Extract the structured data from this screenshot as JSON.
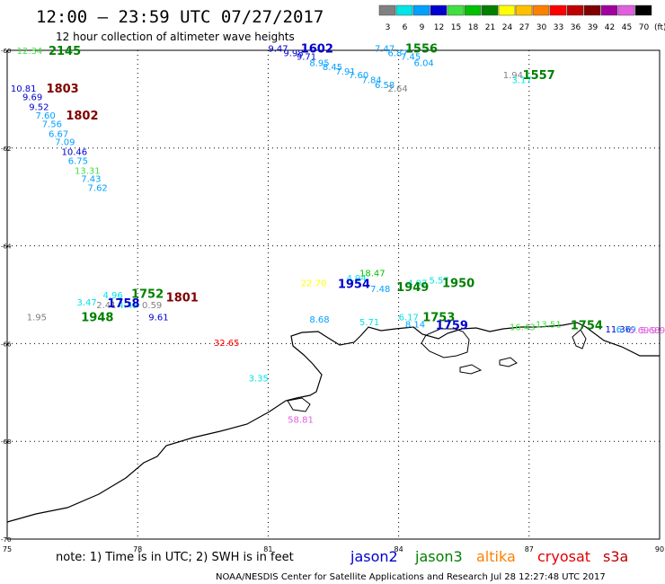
{
  "header": {
    "title": "12:00 – 23:59 UTC 07/27/2017",
    "subtitle": "12 hour collection of altimeter wave heights"
  },
  "legend": {
    "unit": "(ft)",
    "bins": [
      {
        "label": "3",
        "color": "#808080"
      },
      {
        "label": "6",
        "color": "#00e5e5"
      },
      {
        "label": "9",
        "color": "#00a0ff"
      },
      {
        "label": "12",
        "color": "#0000d0"
      },
      {
        "label": "15",
        "color": "#40e040"
      },
      {
        "label": "18",
        "color": "#00c000"
      },
      {
        "label": "21",
        "color": "#008000"
      },
      {
        "label": "24",
        "color": "#ffff00"
      },
      {
        "label": "27",
        "color": "#ffc000"
      },
      {
        "label": "30",
        "color": "#ff8000"
      },
      {
        "label": "33",
        "color": "#ff0000"
      },
      {
        "label": "36",
        "color": "#c00000"
      },
      {
        "label": "39",
        "color": "#800000"
      },
      {
        "label": "42",
        "color": "#a000a0"
      },
      {
        "label": "45",
        "color": "#e060e0"
      },
      {
        "label": "70",
        "color": "#000000"
      }
    ]
  },
  "map": {
    "lon_range": [
      75,
      90
    ],
    "lat_range": [
      -60,
      -70
    ],
    "lon_ticks": [
      "75",
      "78",
      "81",
      "84",
      "87",
      "90"
    ],
    "lat_ticks": [
      "-60",
      "-62",
      "-64",
      "-66",
      "-68",
      "-70"
    ],
    "grid": "dotted"
  },
  "observations": [
    {
      "v": "12.34",
      "color": "#40e040",
      "lon": 75.22,
      "lat": -60.0
    },
    {
      "v": "9.47",
      "color": "#0000d0",
      "lon": 81.0,
      "lat": -59.95
    },
    {
      "v": "9.98",
      "color": "#0000d0",
      "lon": 81.35,
      "lat": -60.05
    },
    {
      "v": "9.71",
      "color": "#0000d0",
      "lon": 81.65,
      "lat": -60.12
    },
    {
      "v": "8.95",
      "color": "#00a0ff",
      "lon": 81.95,
      "lat": -60.25
    },
    {
      "v": "8.45",
      "color": "#00a0ff",
      "lon": 82.25,
      "lat": -60.33
    },
    {
      "v": "7.91",
      "color": "#00a0ff",
      "lon": 82.55,
      "lat": -60.42
    },
    {
      "v": "7.60",
      "color": "#00a0ff",
      "lon": 82.85,
      "lat": -60.5
    },
    {
      "v": "7.84",
      "color": "#00a0ff",
      "lon": 83.15,
      "lat": -60.6
    },
    {
      "v": "6.58",
      "color": "#00a0ff",
      "lon": 83.45,
      "lat": -60.7
    },
    {
      "v": "2.64",
      "color": "#808080",
      "lon": 83.75,
      "lat": -60.77
    },
    {
      "v": "7.47",
      "color": "#00a0ff",
      "lon": 83.45,
      "lat": -59.95
    },
    {
      "v": "6.87",
      "color": "#00a0ff",
      "lon": 83.75,
      "lat": -60.05
    },
    {
      "v": "7.45",
      "color": "#00a0ff",
      "lon": 84.05,
      "lat": -60.12
    },
    {
      "v": "6.04",
      "color": "#00a0ff",
      "lon": 84.35,
      "lat": -60.25
    },
    {
      "v": "1.94",
      "color": "#808080",
      "lon": 86.4,
      "lat": -60.5
    },
    {
      "v": "3.17",
      "color": "#00e5e5",
      "lon": 86.6,
      "lat": -60.6
    },
    {
      "v": "10.81",
      "color": "#0000d0",
      "lon": 75.08,
      "lat": -60.77
    },
    {
      "v": "9.69",
      "color": "#0000d0",
      "lon": 75.35,
      "lat": -60.95
    },
    {
      "v": "9.52",
      "color": "#0000d0",
      "lon": 75.5,
      "lat": -61.15
    },
    {
      "v": "7.60",
      "color": "#00a0ff",
      "lon": 75.65,
      "lat": -61.32
    },
    {
      "v": "7.56",
      "color": "#00a0ff",
      "lon": 75.8,
      "lat": -61.5
    },
    {
      "v": "6.67",
      "color": "#00a0ff",
      "lon": 75.95,
      "lat": -61.7
    },
    {
      "v": "7.09",
      "color": "#00a0ff",
      "lon": 76.1,
      "lat": -61.87
    },
    {
      "v": "10.46",
      "color": "#0000d0",
      "lon": 76.25,
      "lat": -62.07
    },
    {
      "v": "6.75",
      "color": "#00a0ff",
      "lon": 76.4,
      "lat": -62.25
    },
    {
      "v": "13.31",
      "color": "#40e040",
      "lon": 76.55,
      "lat": -62.45
    },
    {
      "v": "7.43",
      "color": "#00a0ff",
      "lon": 76.7,
      "lat": -62.62
    },
    {
      "v": "7.62",
      "color": "#00a0ff",
      "lon": 76.85,
      "lat": -62.8
    },
    {
      "v": "22.70",
      "color": "#ffff00",
      "lon": 81.75,
      "lat": -64.75
    },
    {
      "v": "4.94",
      "color": "#00e5e5",
      "lon": 82.8,
      "lat": -64.65
    },
    {
      "v": "18.47",
      "color": "#00c000",
      "lon": 83.1,
      "lat": -64.55
    },
    {
      "v": "7.48",
      "color": "#00a0ff",
      "lon": 83.35,
      "lat": -64.87
    },
    {
      "v": "4.97",
      "color": "#00e5e5",
      "lon": 84.2,
      "lat": -64.75
    },
    {
      "v": "5.57",
      "color": "#00e5e5",
      "lon": 84.7,
      "lat": -64.7
    },
    {
      "v": "4.96",
      "color": "#00e5e5",
      "lon": 77.2,
      "lat": -65.0
    },
    {
      "v": "3.47",
      "color": "#00e5e5",
      "lon": 76.6,
      "lat": -65.15
    },
    {
      "v": "2.41",
      "color": "#808080",
      "lon": 77.05,
      "lat": -65.2
    },
    {
      "v": "4.45",
      "color": "#00e5e5",
      "lon": 77.55,
      "lat": -65.2
    },
    {
      "v": "0.59",
      "color": "#808080",
      "lon": 78.1,
      "lat": -65.2
    },
    {
      "v": "1.95",
      "color": "#808080",
      "lon": 75.45,
      "lat": -65.45
    },
    {
      "v": "9.61",
      "color": "#0000d0",
      "lon": 78.25,
      "lat": -65.45
    },
    {
      "v": "8.68",
      "color": "#00a0ff",
      "lon": 81.95,
      "lat": -65.5
    },
    {
      "v": "5.71",
      "color": "#00e5e5",
      "lon": 83.1,
      "lat": -65.55
    },
    {
      "v": "6.17",
      "color": "#00e5e5",
      "lon": 84.0,
      "lat": -65.45
    },
    {
      "v": "8.14",
      "color": "#00a0ff",
      "lon": 84.15,
      "lat": -65.6
    },
    {
      "v": "32.65",
      "color": "#ff0000",
      "lon": 79.75,
      "lat": -65.97
    },
    {
      "v": "16.43",
      "color": "#40e040",
      "lon": 86.55,
      "lat": -65.65
    },
    {
      "v": "13.51",
      "color": "#40e040",
      "lon": 87.15,
      "lat": -65.6
    },
    {
      "v": "11.36",
      "color": "#0000d0",
      "lon": 88.75,
      "lat": -65.7
    },
    {
      "v": "6.79",
      "color": "#00a0ff",
      "lon": 89.0,
      "lat": -65.7
    },
    {
      "v": "5.69",
      "color": "#e060e0",
      "lon": 89.3,
      "lat": -65.72
    },
    {
      "v": "5.68",
      "color": "#e060e0",
      "lon": 89.55,
      "lat": -65.72
    },
    {
      "v": "9.91",
      "color": "#e060e0",
      "lon": 89.8,
      "lat": -65.72
    },
    {
      "v": "3.35",
      "color": "#00e5e5",
      "lon": 80.55,
      "lat": -66.7
    },
    {
      "v": "58.81",
      "color": "#e060e0",
      "lon": 81.45,
      "lat": -67.55
    }
  ],
  "pass_times": [
    {
      "t": "2145",
      "color": "#008000",
      "lon": 75.95,
      "lat": -60.0
    },
    {
      "t": "1602",
      "color": "#0000d0",
      "lon": 81.75,
      "lat": -59.95
    },
    {
      "t": "1556",
      "color": "#008000",
      "lon": 84.15,
      "lat": -59.95
    },
    {
      "t": "1557",
      "color": "#008000",
      "lon": 86.85,
      "lat": -60.5
    },
    {
      "t": "1803",
      "color": "#800000",
      "lon": 75.9,
      "lat": -60.77
    },
    {
      "t": "1802",
      "color": "#800000",
      "lon": 76.35,
      "lat": -61.32
    },
    {
      "t": "1954",
      "color": "#0000d0",
      "lon": 82.6,
      "lat": -64.77
    },
    {
      "t": "1949",
      "color": "#008000",
      "lon": 83.95,
      "lat": -64.83
    },
    {
      "t": "1950",
      "color": "#008000",
      "lon": 85.0,
      "lat": -64.75
    },
    {
      "t": "1752",
      "color": "#008000",
      "lon": 77.85,
      "lat": -64.97
    },
    {
      "t": "1801",
      "color": "#800000",
      "lon": 78.65,
      "lat": -65.05
    },
    {
      "t": "1758",
      "color": "#0000d0",
      "lon": 77.3,
      "lat": -65.17
    },
    {
      "t": "1948",
      "color": "#008000",
      "lon": 76.7,
      "lat": -65.45
    },
    {
      "t": "1753",
      "color": "#008000",
      "lon": 84.55,
      "lat": -65.45
    },
    {
      "t": "1759",
      "color": "#0000d0",
      "lon": 84.85,
      "lat": -65.62
    },
    {
      "t": "1754",
      "color": "#008000",
      "lon": 87.95,
      "lat": -65.62
    }
  ],
  "footer": {
    "note": "note:  1) Time is in UTC;  2) SWH is in feet",
    "satellites": [
      {
        "name": "jason2",
        "color": "#0000d0"
      },
      {
        "name": "jason3",
        "color": "#008000"
      },
      {
        "name": "altika",
        "color": "#ff8000"
      },
      {
        "name": "cryosat",
        "color": "#e00000"
      },
      {
        "name": "s3a",
        "color": "#c00000"
      }
    ],
    "credit": "NOAA/NESDIS Center for Satellite Applications and Research    Jul 28 12:27:48 UTC 2017"
  }
}
